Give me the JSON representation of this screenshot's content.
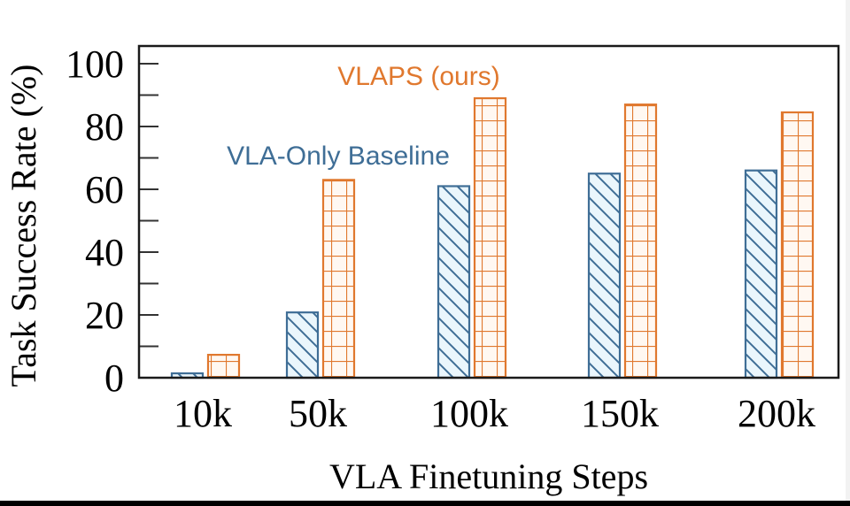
{
  "chart_data": {
    "type": "bar",
    "title": "",
    "xlabel": "VLA Finetuning Steps",
    "ylabel": "Task Success Rate (%)",
    "categories": [
      "10k",
      "50k",
      "100k",
      "150k",
      "200k"
    ],
    "ylim": [
      0,
      100
    ],
    "yticks": [
      0,
      20,
      40,
      60,
      80,
      100
    ],
    "yminor_ticks": [
      10,
      30,
      50,
      70,
      90
    ],
    "grid": false,
    "series": [
      {
        "name": "VLA-Only Baseline",
        "color": "#3f6e96",
        "fill": "#eaf6fc",
        "pattern": "diagonal-hatch",
        "values": [
          1.4,
          20.8,
          61,
          65,
          66
        ]
      },
      {
        "name": "VLAPS (ours)",
        "color": "#e0782e",
        "fill": "#fff8f2",
        "pattern": "grid",
        "values": [
          7.3,
          63,
          89,
          87,
          84.5
        ]
      }
    ],
    "annotations": [
      {
        "text": "VLAPS (ours)",
        "series": "VLAPS (ours)"
      },
      {
        "text": "VLA-Only Baseline",
        "series": "VLA-Only Baseline"
      }
    ],
    "legend": "inline-annotations"
  }
}
